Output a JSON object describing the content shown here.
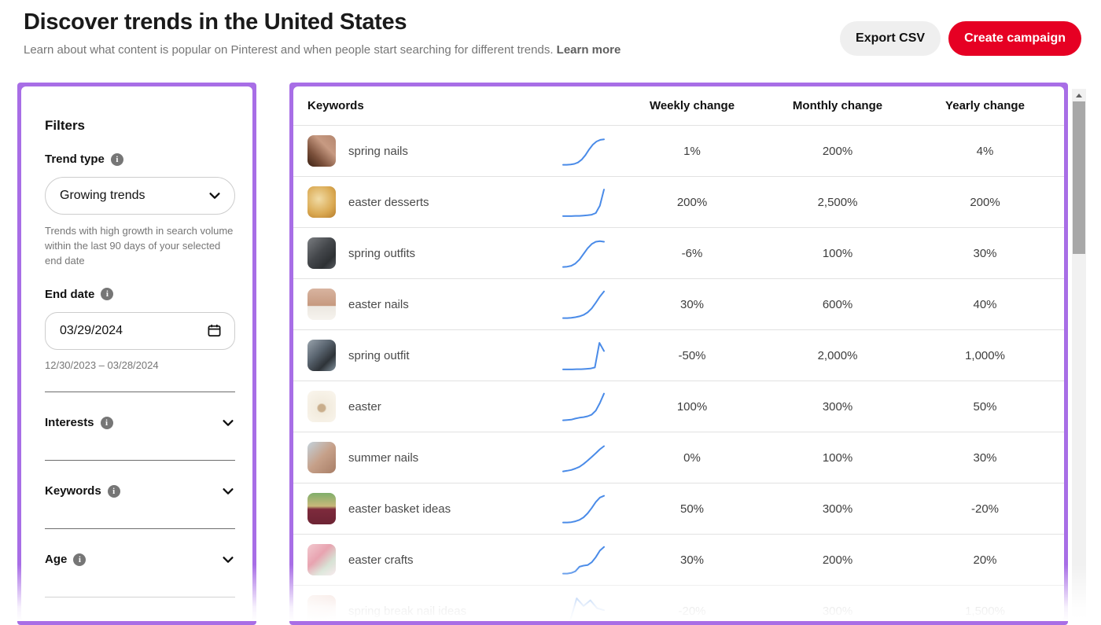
{
  "header": {
    "title": "Discover trends in the United States",
    "subtitle": "Learn about what content is popular on Pinterest and when people start searching for different trends.",
    "learn_more": "Learn more",
    "export_csv_label": "Export CSV",
    "create_campaign_label": "Create campaign"
  },
  "filters": {
    "title": "Filters",
    "trend_type": {
      "label": "Trend type",
      "value": "Growing trends",
      "help": "Trends with high growth in search volume within the last 90 days of your selected end date"
    },
    "end_date": {
      "label": "End date",
      "value": "03/29/2024",
      "range": "12/30/2023 – 03/28/2024"
    },
    "sections": [
      {
        "label": "Interests"
      },
      {
        "label": "Keywords"
      },
      {
        "label": "Age"
      }
    ]
  },
  "table": {
    "columns": [
      "Keywords",
      "Weekly change",
      "Monthly change",
      "Yearly change"
    ],
    "rows": [
      {
        "keyword": "spring nails",
        "weekly": "1%",
        "monthly": "200%",
        "yearly": "4%",
        "spark": [
          4,
          4,
          5,
          7,
          12,
          22,
          38,
          58,
          75,
          86,
          92,
          94
        ],
        "thumb": "linear-gradient(45deg, #3d2314 0%, #7a4f3a 30%, #c79a82 65%, #b5876f 100%)"
      },
      {
        "keyword": "easter desserts",
        "weekly": "200%",
        "monthly": "2,500%",
        "yearly": "200%",
        "spark": [
          3,
          3,
          3,
          4,
          4,
          5,
          6,
          8,
          14,
          40,
          97
        ],
        "thumb": "radial-gradient(circle at 40% 40%, #f1dca6, #daa952 60%, #b67d2c)"
      },
      {
        "keyword": "spring outfits",
        "weekly": "-6%",
        "monthly": "100%",
        "yearly": "30%",
        "spark": [
          4,
          5,
          8,
          16,
          30,
          50,
          70,
          85,
          93,
          95,
          93
        ],
        "thumb": "linear-gradient(135deg, #7a7d81, #45484c 45%, #2e3134 75%, #595d62)"
      },
      {
        "keyword": "easter nails",
        "weekly": "30%",
        "monthly": "600%",
        "yearly": "40%",
        "spark": [
          4,
          4,
          5,
          7,
          10,
          15,
          24,
          38,
          58,
          80,
          98
        ],
        "thumb": "linear-gradient(180deg, #d8b4a0 0%, #c6997f 55%, #ece8e1 56%, #f6f3ee 100%)"
      },
      {
        "keyword": "spring outfit",
        "weekly": "-50%",
        "monthly": "2,000%",
        "yearly": "1,000%",
        "spark": [
          3,
          3,
          3,
          4,
          4,
          5,
          6,
          10,
          97,
          68
        ],
        "thumb": "linear-gradient(135deg, #9aa4ad, #5a6570 40%, #2e3338 70%, #8494a0)"
      },
      {
        "keyword": "easter",
        "weekly": "100%",
        "monthly": "300%",
        "yearly": "50%",
        "spark": [
          4,
          5,
          6,
          10,
          13,
          15,
          18,
          24,
          38,
          65,
          98
        ],
        "thumb": "radial-gradient(circle at 50% 55%, #c9ae8c 16%, #f2ebdd 22%, #faf6ee)"
      },
      {
        "keyword": "summer nails",
        "weekly": "0%",
        "monthly": "100%",
        "yearly": "30%",
        "spark": [
          4,
          6,
          9,
          14,
          20,
          30,
          42,
          55,
          68,
          82,
          93
        ],
        "thumb": "linear-gradient(135deg, #c3d2dc, #c6a089 50%, #a87e66)"
      },
      {
        "keyword": "easter basket ideas",
        "weekly": "50%",
        "monthly": "300%",
        "yearly": "-20%",
        "spark": [
          4,
          4,
          5,
          8,
          13,
          22,
          36,
          55,
          76,
          92,
          98
        ],
        "thumb": "linear-gradient(180deg, #7fae6a 0%, #c8b87a 42%, #7d2a3c 52%, #6d2434 100%)"
      },
      {
        "keyword": "easter crafts",
        "weekly": "30%",
        "monthly": "200%",
        "yearly": "20%",
        "spark": [
          4,
          4,
          6,
          12,
          28,
          32,
          34,
          44,
          62,
          85,
          98
        ],
        "thumb": "linear-gradient(135deg, #f2c9cf, #e8a3b0 40%, #d7e3d5 70%, #f6e3e8)"
      },
      {
        "keyword": "spring break nail ideas",
        "weekly": "-20%",
        "monthly": "300%",
        "yearly": "1,500%",
        "spark": [
          5,
          15,
          97,
          70,
          90,
          62,
          55
        ],
        "thumb": "linear-gradient(135deg, #f5e3dc, #eac5bb 60%, #f8ece7)"
      }
    ]
  },
  "icons": {
    "info": "i"
  },
  "colors": {
    "accent_purple": "#a86ee6",
    "brand_red": "#e60023",
    "button_gray": "#efefef",
    "spark_blue": "#4a8be8",
    "divider_gray": "#e2e2e2"
  }
}
